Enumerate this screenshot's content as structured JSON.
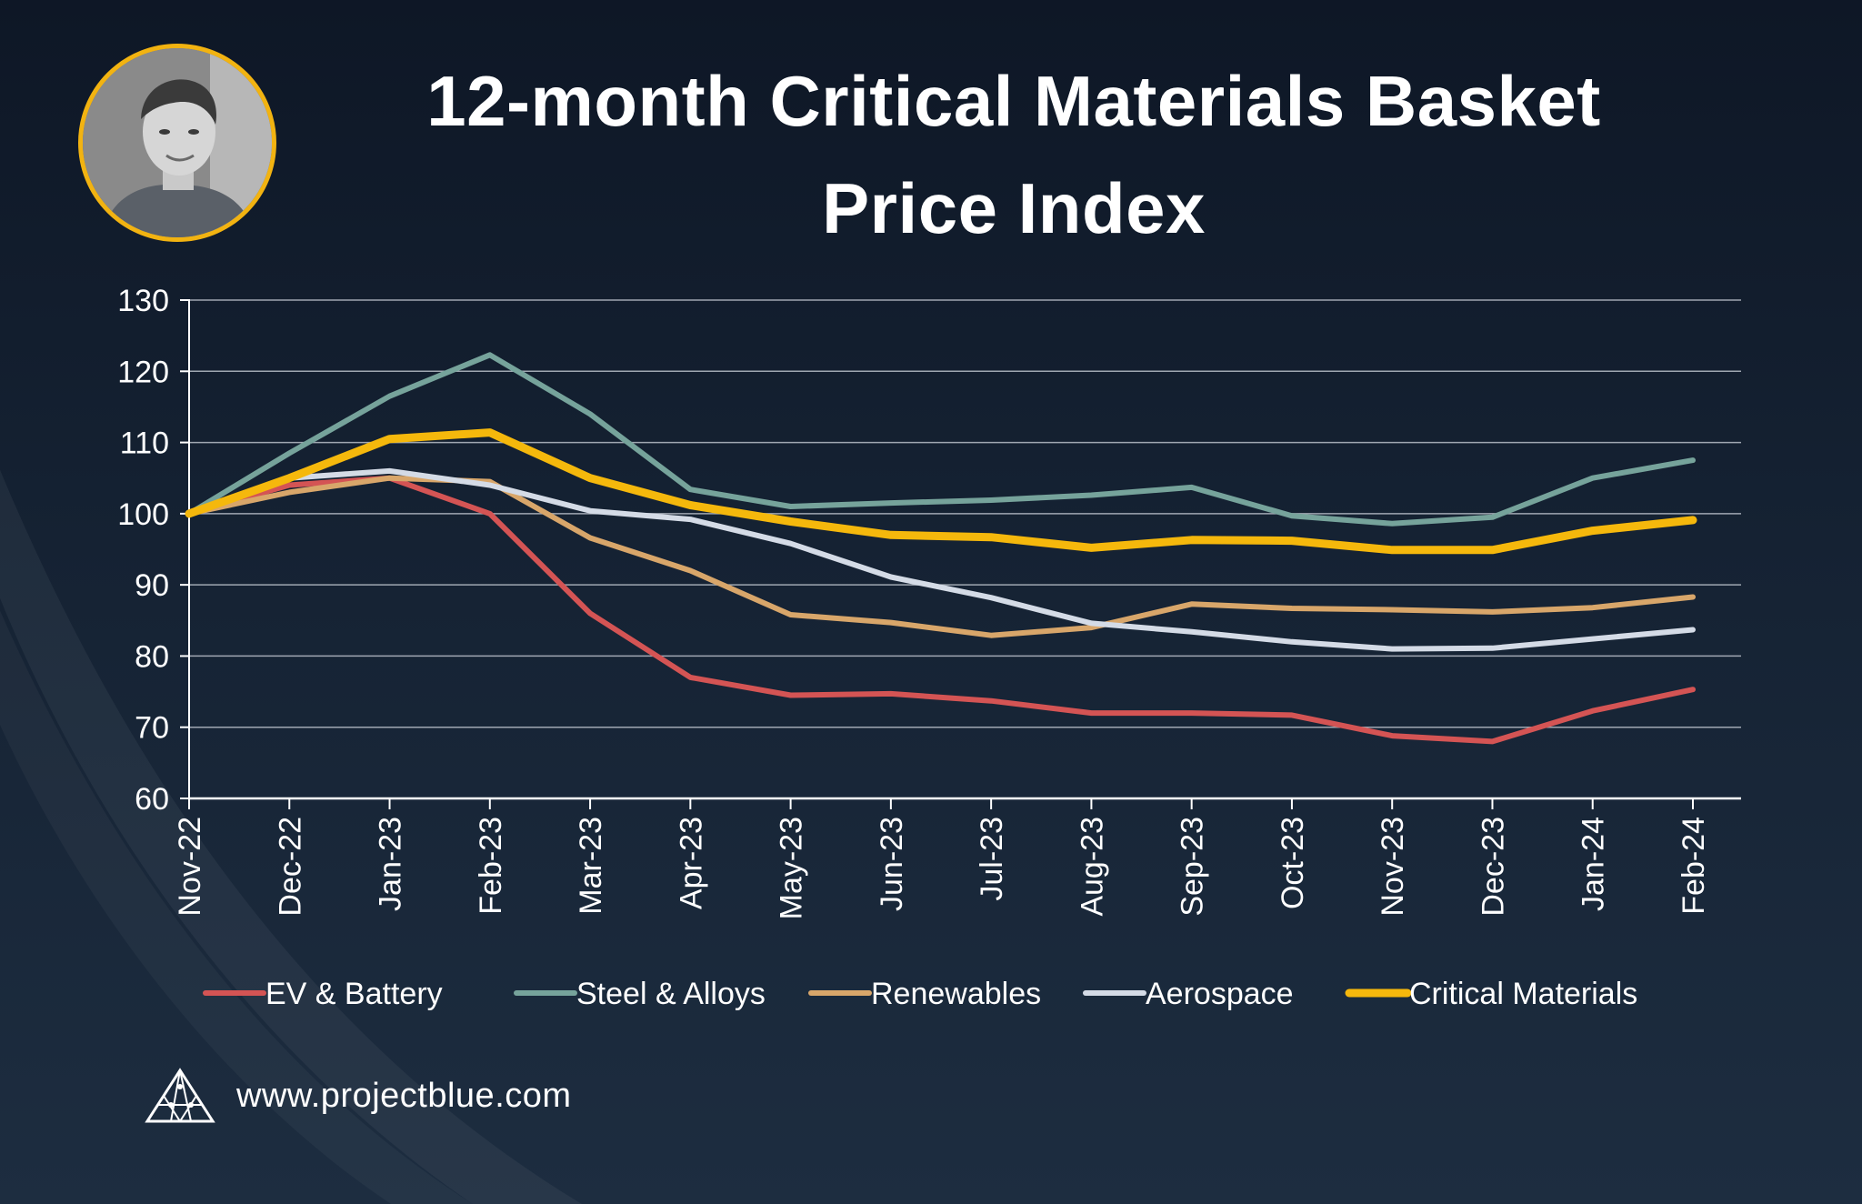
{
  "header": {
    "title_line1": "12-month Critical Materials Basket",
    "title_line2": "Price Index"
  },
  "footer": {
    "url": "www.projectblue.com",
    "logo_icon": "projectblue-triangle-logo-icon"
  },
  "colors": {
    "ev_battery": "#d45454",
    "steel_alloys": "#76a39b",
    "renewables": "#d8a66a",
    "aerospace": "#d4dbe6",
    "critical_materials": "#f5b80c",
    "grid": "#c3c9d2",
    "avatar_ring": "#f2b311"
  },
  "chart_data": {
    "type": "line",
    "title": "12-month Critical Materials Basket Price Index",
    "xlabel": "",
    "ylabel": "",
    "ylim": [
      60,
      130
    ],
    "yticks": [
      "130",
      "120",
      "110",
      "100",
      "90",
      "80",
      "70",
      "60"
    ],
    "grid": true,
    "legend_position": "bottom",
    "categories": [
      "Nov-22",
      "Dec-22",
      "Jan-23",
      "Feb-23",
      "Mar-23",
      "Apr-23",
      "May-23",
      "Jun-23",
      "Jul-23",
      "Aug-23",
      "Sep-23",
      "Oct-23",
      "Nov-23",
      "Dec-23",
      "Jan-24",
      "Feb-24"
    ],
    "series": [
      {
        "name": "EV & Battery",
        "color_key": "ev_battery",
        "values": [
          100,
          104,
          105,
          100,
          86,
          77,
          74.5,
          74.7,
          73.7,
          72,
          72,
          71.7,
          68.8,
          68,
          72.3,
          75.3
        ]
      },
      {
        "name": "Steel & Alloys",
        "color_key": "steel_alloys",
        "values": [
          100,
          108.5,
          116.5,
          122.3,
          114,
          103.4,
          101,
          101.5,
          101.9,
          102.6,
          103.7,
          99.7,
          98.6,
          99.5,
          105,
          107.5
        ]
      },
      {
        "name": "Renewables",
        "color_key": "renewables",
        "values": [
          100,
          103,
          105,
          104.5,
          96.6,
          92,
          85.8,
          84.7,
          82.9,
          84,
          87.3,
          86.7,
          86.5,
          86.2,
          86.8,
          88.3
        ]
      },
      {
        "name": "Aerospace",
        "color_key": "aerospace",
        "values": [
          100,
          105,
          106,
          104,
          100.4,
          99.2,
          95.8,
          91.1,
          88.2,
          84.6,
          83.4,
          82,
          81,
          81.1,
          82.4,
          83.7
        ]
      },
      {
        "name": "Critical Materials",
        "color_key": "critical_materials",
        "values": [
          100,
          105,
          110.5,
          111.4,
          105,
          101.2,
          98.9,
          97,
          96.7,
          95.2,
          96.3,
          96.2,
          94.9,
          94.9,
          97.6,
          99.1
        ]
      }
    ]
  }
}
